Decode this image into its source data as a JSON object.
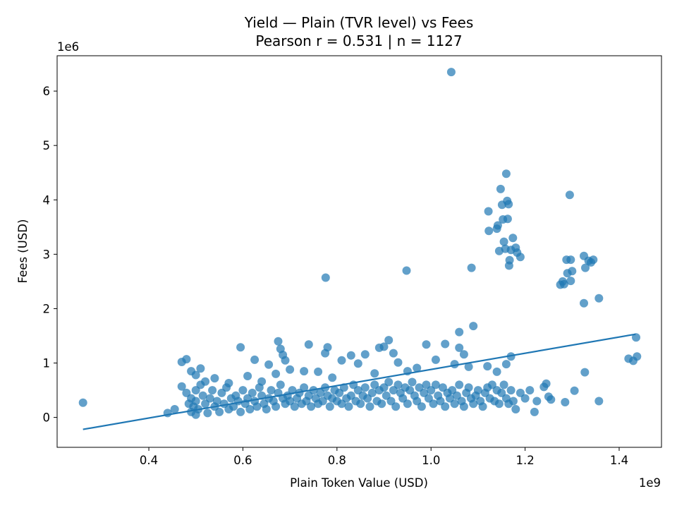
{
  "chart_data": {
    "type": "scatter",
    "title": "Yield — Plain (TVR level) vs Fees",
    "subtitle": "Pearson r = 0.531 | n = 1127",
    "xlabel": "Plain Token Value (USD)",
    "ylabel": "Fees (USD)",
    "x_offset_label": "1e9",
    "y_offset_label": "1e6",
    "x_scale": 1000000000,
    "y_scale": 1000000,
    "xlim": [
      0.205,
      1.49
    ],
    "ylim": [
      -0.55,
      6.65
    ],
    "x_ticks": [
      0.4,
      0.6,
      0.8,
      1.0,
      1.2,
      1.4
    ],
    "x_tick_labels": [
      "0.4",
      "0.6",
      "0.8",
      "1.0",
      "1.2",
      "1.4"
    ],
    "y_ticks": [
      0,
      1,
      2,
      3,
      4,
      5,
      6
    ],
    "y_tick_labels": [
      "0",
      "1",
      "2",
      "3",
      "4",
      "5",
      "6"
    ],
    "grid": false,
    "legend": "none",
    "marker_color": "#1f77b4",
    "trend_line": {
      "x": [
        0.26,
        1.435
      ],
      "y": [
        -0.22,
        1.53
      ],
      "color": "#1f77b4"
    },
    "points": [
      [
        0.26,
        0.27
      ],
      [
        0.44,
        0.08
      ],
      [
        0.455,
        0.15
      ],
      [
        0.47,
        0.57
      ],
      [
        0.48,
        0.45
      ],
      [
        0.485,
        0.25
      ],
      [
        0.49,
        0.1
      ],
      [
        0.49,
        0.35
      ],
      [
        0.495,
        0.2
      ],
      [
        0.5,
        0.05
      ],
      [
        0.5,
        0.3
      ],
      [
        0.5,
        0.5
      ],
      [
        0.505,
        0.15
      ],
      [
        0.51,
        0.6
      ],
      [
        0.515,
        0.4
      ],
      [
        0.52,
        0.25
      ],
      [
        0.525,
        0.08
      ],
      [
        0.53,
        0.35
      ],
      [
        0.535,
        0.5
      ],
      [
        0.54,
        0.2
      ],
      [
        0.545,
        0.3
      ],
      [
        0.55,
        0.1
      ],
      [
        0.555,
        0.45
      ],
      [
        0.56,
        0.25
      ],
      [
        0.565,
        0.55
      ],
      [
        0.57,
        0.15
      ],
      [
        0.575,
        0.35
      ],
      [
        0.58,
        0.2
      ],
      [
        0.585,
        0.4
      ],
      [
        0.59,
        0.3
      ],
      [
        0.595,
        0.1
      ],
      [
        0.6,
        0.5
      ],
      [
        0.605,
        0.25
      ],
      [
        0.61,
        0.35
      ],
      [
        0.615,
        0.15
      ],
      [
        0.62,
        0.45
      ],
      [
        0.625,
        0.3
      ],
      [
        0.63,
        0.2
      ],
      [
        0.635,
        0.55
      ],
      [
        0.64,
        0.4
      ],
      [
        0.645,
        0.25
      ],
      [
        0.65,
        0.15
      ],
      [
        0.655,
        0.35
      ],
      [
        0.66,
        0.5
      ],
      [
        0.665,
        0.3
      ],
      [
        0.67,
        0.2
      ],
      [
        0.675,
        0.45
      ],
      [
        0.68,
        0.6
      ],
      [
        0.685,
        0.35
      ],
      [
        0.69,
        0.25
      ],
      [
        0.695,
        0.4
      ],
      [
        0.7,
        0.3
      ],
      [
        0.705,
        0.5
      ],
      [
        0.71,
        0.2
      ],
      [
        0.715,
        0.35
      ],
      [
        0.72,
        0.45
      ],
      [
        0.725,
        0.25
      ],
      [
        0.73,
        0.55
      ],
      [
        0.735,
        0.3
      ],
      [
        0.74,
        0.4
      ],
      [
        0.745,
        0.2
      ],
      [
        0.75,
        0.5
      ],
      [
        0.755,
        0.35
      ],
      [
        0.76,
        0.25
      ],
      [
        0.765,
        0.45
      ],
      [
        0.77,
        0.3
      ],
      [
        0.775,
        0.55
      ],
      [
        0.78,
        0.4
      ],
      [
        0.785,
        0.2
      ],
      [
        0.79,
        0.35
      ],
      [
        0.795,
        0.5
      ],
      [
        0.8,
        0.3
      ],
      [
        0.805,
        0.45
      ],
      [
        0.81,
        0.25
      ],
      [
        0.815,
        0.55
      ],
      [
        0.82,
        0.35
      ],
      [
        0.825,
        0.2
      ],
      [
        0.83,
        0.4
      ],
      [
        0.835,
        0.6
      ],
      [
        0.84,
        0.3
      ],
      [
        0.845,
        0.5
      ],
      [
        0.85,
        0.25
      ],
      [
        0.855,
        0.4
      ],
      [
        0.86,
        0.55
      ],
      [
        0.865,
        0.35
      ],
      [
        0.87,
        0.2
      ],
      [
        0.875,
        0.45
      ],
      [
        0.88,
        0.6
      ],
      [
        0.885,
        0.3
      ],
      [
        0.89,
        0.5
      ],
      [
        0.895,
        0.25
      ],
      [
        0.9,
        0.55
      ],
      [
        0.905,
        0.4
      ],
      [
        0.91,
        0.65
      ],
      [
        0.915,
        0.3
      ],
      [
        0.92,
        0.5
      ],
      [
        0.925,
        0.2
      ],
      [
        0.93,
        0.6
      ],
      [
        0.935,
        0.45
      ],
      [
        0.94,
        0.35
      ],
      [
        0.945,
        0.55
      ],
      [
        0.95,
        0.25
      ],
      [
        0.955,
        0.5
      ],
      [
        0.96,
        0.65
      ],
      [
        0.965,
        0.4
      ],
      [
        0.97,
        0.3
      ],
      [
        0.975,
        0.55
      ],
      [
        0.98,
        0.2
      ],
      [
        0.985,
        0.45
      ],
      [
        0.99,
        0.6
      ],
      [
        0.995,
        0.35
      ],
      [
        1.0,
        0.5
      ],
      [
        1.005,
        0.25
      ],
      [
        1.01,
        0.6
      ],
      [
        1.015,
        0.4
      ],
      [
        1.02,
        0.3
      ],
      [
        1.025,
        0.55
      ],
      [
        1.03,
        0.2
      ],
      [
        1.035,
        0.45
      ],
      [
        1.04,
        0.35
      ],
      [
        1.045,
        0.5
      ],
      [
        1.05,
        0.25
      ],
      [
        1.055,
        0.4
      ],
      [
        1.06,
        0.6
      ],
      [
        1.065,
        0.3
      ],
      [
        1.07,
        0.2
      ],
      [
        1.075,
        0.45
      ],
      [
        1.08,
        0.55
      ],
      [
        1.085,
        0.35
      ],
      [
        1.09,
        0.25
      ],
      [
        1.095,
        0.4
      ],
      [
        1.1,
        0.5
      ],
      [
        1.105,
        0.3
      ],
      [
        1.11,
        0.2
      ],
      [
        1.115,
        0.45
      ],
      [
        1.12,
        0.55
      ],
      [
        1.125,
        0.35
      ],
      [
        1.13,
        0.6
      ],
      [
        1.135,
        0.3
      ],
      [
        1.14,
        0.5
      ],
      [
        1.145,
        0.25
      ],
      [
        1.15,
        0.45
      ],
      [
        1.155,
        0.6
      ],
      [
        1.16,
        0.35
      ],
      [
        1.165,
        0.25
      ],
      [
        1.17,
        0.5
      ],
      [
        1.175,
        0.3
      ],
      [
        1.18,
        0.15
      ],
      [
        1.19,
        0.45
      ],
      [
        1.2,
        0.35
      ],
      [
        0.47,
        1.02
      ],
      [
        0.48,
        1.07
      ],
      [
        0.49,
        0.85
      ],
      [
        0.5,
        0.78
      ],
      [
        0.51,
        0.9
      ],
      [
        0.52,
        0.66
      ],
      [
        0.54,
        0.72
      ],
      [
        0.57,
        0.63
      ],
      [
        0.595,
        1.29
      ],
      [
        0.61,
        0.76
      ],
      [
        0.625,
        1.06
      ],
      [
        0.64,
        0.66
      ],
      [
        0.655,
        0.97
      ],
      [
        0.67,
        0.8
      ],
      [
        0.675,
        1.4
      ],
      [
        0.68,
        1.26
      ],
      [
        0.685,
        1.15
      ],
      [
        0.69,
        1.05
      ],
      [
        0.7,
        0.88
      ],
      [
        0.73,
        0.85
      ],
      [
        0.74,
        1.34
      ],
      [
        0.76,
        0.84
      ],
      [
        0.775,
        1.18
      ],
      [
        0.78,
        1.29
      ],
      [
        0.79,
        0.73
      ],
      [
        0.81,
        1.05
      ],
      [
        0.83,
        1.14
      ],
      [
        0.845,
        0.99
      ],
      [
        0.86,
        1.16
      ],
      [
        0.88,
        0.81
      ],
      [
        0.89,
        1.28
      ],
      [
        0.9,
        1.3
      ],
      [
        0.91,
        1.42
      ],
      [
        0.92,
        1.18
      ],
      [
        0.93,
        1.01
      ],
      [
        0.95,
        0.85
      ],
      [
        0.97,
        0.91
      ],
      [
        0.99,
        1.34
      ],
      [
        1.01,
        1.06
      ],
      [
        1.03,
        1.35
      ],
      [
        1.05,
        0.98
      ],
      [
        1.06,
        1.28
      ],
      [
        1.07,
        1.16
      ],
      [
        1.08,
        0.93
      ],
      [
        1.09,
        1.68
      ],
      [
        1.06,
        1.57
      ],
      [
        1.12,
        0.94
      ],
      [
        1.14,
        0.84
      ],
      [
        1.16,
        0.98
      ],
      [
        1.17,
        1.12
      ],
      [
        0.776,
        2.57
      ],
      [
        0.948,
        2.7
      ],
      [
        1.043,
        6.35
      ],
      [
        1.086,
        2.75
      ],
      [
        1.122,
        3.79
      ],
      [
        1.123,
        3.43
      ],
      [
        1.14,
        3.47
      ],
      [
        1.142,
        3.53
      ],
      [
        1.145,
        3.06
      ],
      [
        1.148,
        4.2
      ],
      [
        1.151,
        3.91
      ],
      [
        1.153,
        3.64
      ],
      [
        1.155,
        3.23
      ],
      [
        1.158,
        3.1
      ],
      [
        1.16,
        4.48
      ],
      [
        1.162,
        3.98
      ],
      [
        1.163,
        3.65
      ],
      [
        1.165,
        3.92
      ],
      [
        1.166,
        2.79
      ],
      [
        1.167,
        2.89
      ],
      [
        1.17,
        3.08
      ],
      [
        1.174,
        3.3
      ],
      [
        1.18,
        3.12
      ],
      [
        1.183,
        3.03
      ],
      [
        1.19,
        2.95
      ],
      [
        1.295,
        4.09
      ],
      [
        1.275,
        2.44
      ],
      [
        1.28,
        2.5
      ],
      [
        1.283,
        2.45
      ],
      [
        1.288,
        2.9
      ],
      [
        1.29,
        2.65
      ],
      [
        1.3,
        2.69
      ],
      [
        1.297,
        2.9
      ],
      [
        1.325,
        2.97
      ],
      [
        1.328,
        2.75
      ],
      [
        1.335,
        2.88
      ],
      [
        1.34,
        2.85
      ],
      [
        1.345,
        2.9
      ],
      [
        1.357,
        2.19
      ],
      [
        1.325,
        2.1
      ],
      [
        1.297,
        2.51
      ],
      [
        1.21,
        0.5
      ],
      [
        1.22,
        0.1
      ],
      [
        1.225,
        0.3
      ],
      [
        1.24,
        0.56
      ],
      [
        1.245,
        0.62
      ],
      [
        1.25,
        0.38
      ],
      [
        1.255,
        0.33
      ],
      [
        1.285,
        0.28
      ],
      [
        1.305,
        0.49
      ],
      [
        1.327,
        0.83
      ],
      [
        1.357,
        0.3
      ],
      [
        1.42,
        1.08
      ],
      [
        1.43,
        1.04
      ],
      [
        1.436,
        1.47
      ],
      [
        1.438,
        1.12
      ]
    ]
  }
}
